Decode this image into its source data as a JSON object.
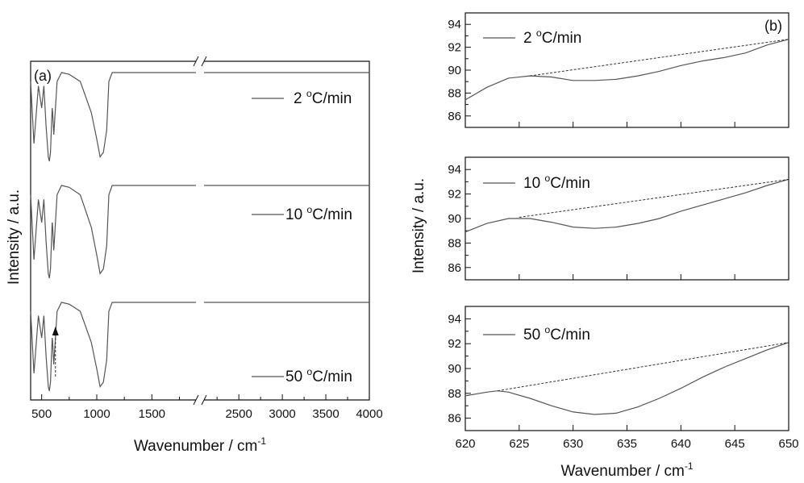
{
  "chart_data": [
    {
      "panel_label": "(a)",
      "type": "line",
      "ylabel": "Intensity / a.u.",
      "xlabel": "Wavenumber / cm",
      "xlabel_superscript": "-1",
      "x_tick_labels": [
        "500",
        "1000",
        "1500",
        "2500",
        "3000",
        "3500",
        "4000"
      ],
      "axis_break": "//",
      "x_segments": [
        [
          400,
          1900
        ],
        [
          2100,
          4000
        ]
      ],
      "annotation": "dashed upward arrow at ~625 cm-1 on the 50 °C/min curve",
      "series": [
        {
          "name": "2",
          "name_unit": "C/min",
          "name_degree": "o",
          "x": [
            400,
            430,
            470,
            500,
            520,
            540,
            560,
            570,
            580,
            595,
            600,
            610,
            640,
            680,
            750,
            850,
            950,
            1000,
            1030,
            1060,
            1090,
            1110,
            1140,
            1200,
            1900,
            2100,
            4000
          ],
          "y": [
            0.9,
            0.2,
            0.85,
            0.6,
            0.85,
            0.4,
            0.05,
            0.0,
            0.1,
            0.6,
            0.55,
            0.3,
            0.9,
            1.0,
            0.98,
            0.9,
            0.55,
            0.25,
            0.05,
            0.1,
            0.35,
            0.9,
            1.0,
            1.0,
            1.0,
            1.0,
            1.0
          ]
        },
        {
          "name": "10",
          "name_unit": "C/min",
          "name_degree": "o",
          "x": [
            400,
            430,
            470,
            500,
            520,
            540,
            560,
            570,
            580,
            595,
            600,
            610,
            640,
            680,
            750,
            850,
            950,
            1000,
            1030,
            1060,
            1090,
            1110,
            1140,
            1200,
            1900,
            2100,
            4000
          ],
          "y": [
            0.9,
            0.2,
            0.85,
            0.6,
            0.85,
            0.4,
            0.05,
            0.0,
            0.1,
            0.6,
            0.55,
            0.3,
            0.9,
            1.0,
            0.98,
            0.9,
            0.55,
            0.25,
            0.05,
            0.1,
            0.35,
            0.9,
            1.0,
            1.0,
            1.0,
            1.0,
            1.0
          ]
        },
        {
          "name": "50",
          "name_unit": "C/min",
          "name_degree": "o",
          "x": [
            400,
            430,
            470,
            500,
            520,
            540,
            560,
            570,
            580,
            595,
            600,
            610,
            640,
            680,
            750,
            850,
            950,
            1000,
            1030,
            1060,
            1090,
            1110,
            1140,
            1200,
            1900,
            2100,
            4000
          ],
          "y": [
            0.9,
            0.2,
            0.85,
            0.6,
            0.85,
            0.4,
            0.05,
            0.0,
            0.1,
            0.6,
            0.55,
            0.3,
            0.9,
            1.0,
            0.98,
            0.9,
            0.55,
            0.25,
            0.05,
            0.1,
            0.35,
            0.9,
            1.0,
            1.0,
            1.0,
            1.0,
            1.0
          ]
        }
      ]
    },
    {
      "panel_label": "(b)",
      "type": "line",
      "ylabel": "Intensity / a.u.",
      "xlabel": "Wavenumber / cm",
      "xlabel_superscript": "-1",
      "xlim": [
        620,
        650
      ],
      "x_ticks": [
        620,
        625,
        630,
        635,
        640,
        645,
        650
      ],
      "ylim": [
        85,
        95
      ],
      "y_ticks": [
        86,
        88,
        90,
        92,
        94
      ],
      "subpanels": [
        {
          "name": "2",
          "name_unit": "C/min",
          "name_degree": "o",
          "x": [
            620,
            622,
            624,
            626,
            628,
            630,
            632,
            634,
            636,
            638,
            640,
            642,
            644,
            646,
            648,
            650
          ],
          "y": [
            87.4,
            88.5,
            89.3,
            89.5,
            89.4,
            89.1,
            89.1,
            89.2,
            89.5,
            89.9,
            90.4,
            90.8,
            91.1,
            91.5,
            92.2,
            92.7
          ],
          "baseline": {
            "x": [
              626,
              650
            ],
            "y": [
              89.5,
              92.7
            ]
          }
        },
        {
          "name": "10",
          "name_unit": "C/min",
          "name_degree": "o",
          "x": [
            620,
            622,
            624,
            626,
            628,
            630,
            632,
            634,
            636,
            638,
            640,
            642,
            644,
            646,
            648,
            650
          ],
          "y": [
            88.9,
            89.6,
            90.0,
            90.0,
            89.7,
            89.3,
            89.2,
            89.3,
            89.6,
            90.0,
            90.6,
            91.1,
            91.6,
            92.1,
            92.7,
            93.2
          ],
          "baseline": {
            "x": [
              625,
              650
            ],
            "y": [
              90.1,
              93.2
            ]
          }
        },
        {
          "name": "50",
          "name_unit": "C/min",
          "name_degree": "o",
          "x": [
            620,
            622,
            623,
            624,
            626,
            628,
            630,
            632,
            634,
            636,
            638,
            640,
            642,
            644,
            646,
            648,
            650
          ],
          "y": [
            87.8,
            88.1,
            88.2,
            88.1,
            87.6,
            87.0,
            86.5,
            86.3,
            86.4,
            86.9,
            87.6,
            88.4,
            89.3,
            90.1,
            90.8,
            91.5,
            92.1
          ],
          "baseline": {
            "x": [
              623,
              650
            ],
            "y": [
              88.2,
              92.1
            ]
          }
        }
      ]
    }
  ]
}
